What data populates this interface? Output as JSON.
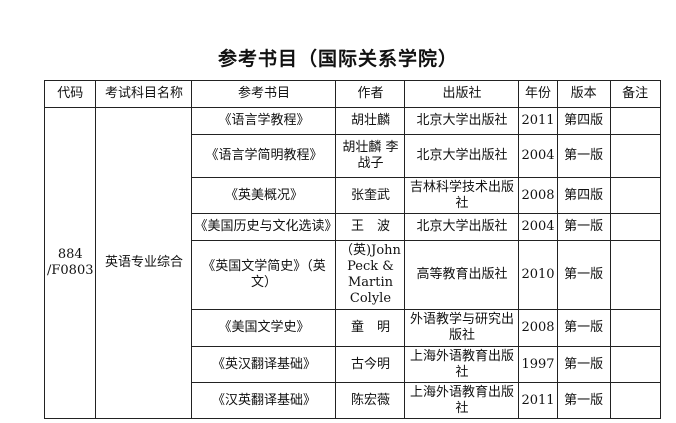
{
  "title": "参考书目（国际关系学院）",
  "headers": [
    "代码",
    "考试科目名称",
    "参考书目",
    "作者",
    "出版社",
    "年份",
    "版本",
    "备注"
  ],
  "code": "884 /F0803",
  "subject": "英语专业综合",
  "rows": [
    {
      "book": "《语言学教程》",
      "author": "胡壮麟",
      "publisher": "北京大学出版社",
      "year": "2011",
      "edition": "第四版",
      "note": ""
    },
    {
      "book": "《语言学简明教程》",
      "author": "胡壮麟 李战子",
      "publisher": "北京大学出版社",
      "year": "2004",
      "edition": "第一版",
      "note": ""
    },
    {
      "book": "《英美概况》",
      "author": "张奎武",
      "publisher": "吉林科学技术出版社",
      "year": "2008",
      "edition": "第四版",
      "note": ""
    },
    {
      "book": "《美国历史与文化选读》",
      "author": "王　波",
      "publisher": "北京大学出版社",
      "year": "2004",
      "edition": "第一版",
      "note": ""
    },
    {
      "book": "《英国文学简史》（英文）",
      "author": "（英)John Peck & Martin Colyle",
      "publisher": "高等教育出版社",
      "year": "2010",
      "edition": "第一版",
      "note": ""
    },
    {
      "book": "《美国文学史》",
      "author": "童　明",
      "publisher": "外语教学与研究出版社",
      "year": "2008",
      "edition": "第一版",
      "note": ""
    },
    {
      "book": "《英汉翻译基础》",
      "author": "古今明",
      "publisher": "上海外语教育出版社",
      "year": "1997",
      "edition": "第一版",
      "note": ""
    },
    {
      "book": "《汉英翻译基础》",
      "author": "陈宏薇",
      "publisher": "上海外语教育出版社",
      "year": "2011",
      "edition": "第一版",
      "note": ""
    }
  ]
}
